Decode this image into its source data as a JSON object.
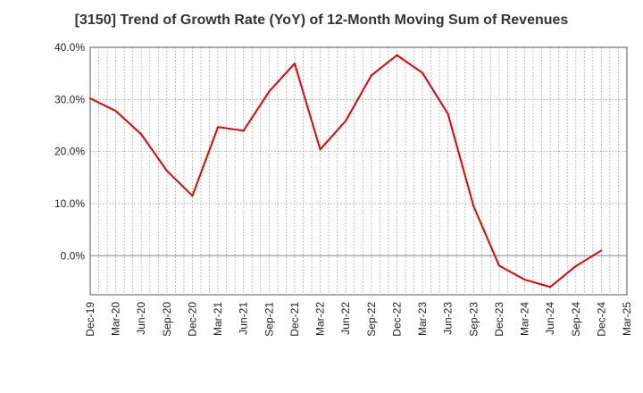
{
  "chart_data": {
    "type": "line",
    "title": "[3150]  Trend of Growth Rate (YoY) of 12-Month Moving Sum of Revenues",
    "xlabel": "",
    "ylabel": "",
    "ylim": [
      -7.5,
      40
    ],
    "yticks": [
      {
        "value": 40,
        "label": "40.0%"
      },
      {
        "value": 30,
        "label": "30.0%"
      },
      {
        "value": 20,
        "label": "20.0%"
      },
      {
        "value": 10,
        "label": "10.0%"
      },
      {
        "value": 0,
        "label": "0.0%"
      }
    ],
    "x_tick_labels": [
      "Dec-19",
      "Mar-20",
      "Jun-20",
      "Sep-20",
      "Dec-20",
      "Mar-21",
      "Jun-21",
      "Sep-21",
      "Dec-21",
      "Mar-22",
      "Jun-22",
      "Sep-22",
      "Dec-22",
      "Mar-23",
      "Jun-23",
      "Sep-23",
      "Dec-23",
      "Mar-24",
      "Jun-24",
      "Sep-24",
      "Dec-24",
      "Mar-25"
    ],
    "grid": true,
    "series": [
      {
        "color": "#e60000",
        "values": [
          30.2,
          27.8,
          23.3,
          16.3,
          11.5,
          24.7,
          24.0,
          31.5,
          36.9,
          20.4,
          25.9,
          34.6,
          38.5,
          35.1,
          27.2,
          9.5,
          -1.9,
          -4.6,
          -6.0,
          -2.0,
          1.0
        ]
      }
    ]
  }
}
